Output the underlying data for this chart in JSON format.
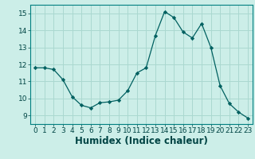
{
  "x": [
    0,
    1,
    2,
    3,
    4,
    5,
    6,
    7,
    8,
    9,
    10,
    11,
    12,
    13,
    14,
    15,
    16,
    17,
    18,
    19,
    20,
    21,
    22,
    23
  ],
  "y": [
    11.8,
    11.8,
    11.7,
    11.1,
    10.1,
    9.6,
    9.45,
    9.75,
    9.8,
    9.9,
    10.45,
    11.5,
    11.8,
    13.7,
    15.1,
    14.75,
    13.9,
    13.55,
    14.4,
    13.0,
    10.75,
    9.7,
    9.2,
    8.85
  ],
  "line_color": "#006060",
  "marker": "D",
  "marker_size": 2.2,
  "bg_color": "#cceee8",
  "grid_color": "#aad8d0",
  "xlabel": "Humidex (Indice chaleur)",
  "xlim": [
    -0.5,
    23.5
  ],
  "ylim": [
    8.5,
    15.5
  ],
  "yticks": [
    9,
    10,
    11,
    12,
    13,
    14,
    15
  ],
  "xticks": [
    0,
    1,
    2,
    3,
    4,
    5,
    6,
    7,
    8,
    9,
    10,
    11,
    12,
    13,
    14,
    15,
    16,
    17,
    18,
    19,
    20,
    21,
    22,
    23
  ],
  "tick_labelsize": 6.5,
  "xlabel_fontsize": 8.5
}
